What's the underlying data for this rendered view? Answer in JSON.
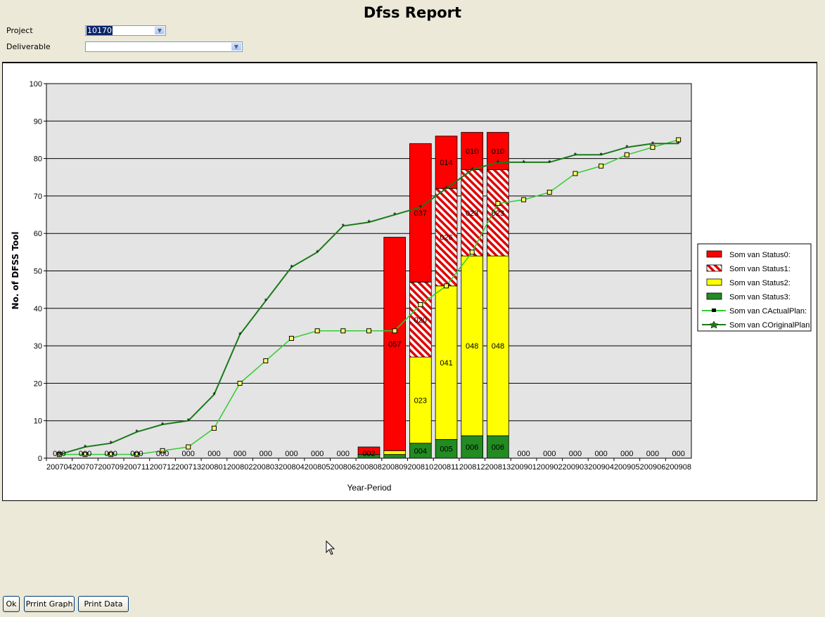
{
  "window": {
    "title": "Dfss Report"
  },
  "filters": {
    "project_label": "Project",
    "project_value": "10170",
    "deliverable_label": "Deliverable",
    "deliverable_value": ""
  },
  "buttons": {
    "ok": "Ok",
    "print_graph": "Prrint Graph",
    "print_data": "Print Data"
  },
  "chart_data": {
    "type": "bar",
    "stacked": true,
    "categories": [
      "200704",
      "200707",
      "200709",
      "200711",
      "200712",
      "200713",
      "200801",
      "200802",
      "200803",
      "200804",
      "200805",
      "200806",
      "200808",
      "200809",
      "200810",
      "200811",
      "200812",
      "200813",
      "200901",
      "200902",
      "200903",
      "200904",
      "200905",
      "200906",
      "200908"
    ],
    "ylabel": "No. of DFSS Tool",
    "xlabel": "Year-Period",
    "ylim": [
      0,
      100
    ],
    "yticks": [
      0,
      10,
      20,
      30,
      40,
      50,
      60,
      70,
      80,
      90,
      100
    ],
    "grid": true,
    "legend_position": "right",
    "series": [
      {
        "name": "Som van Status0:",
        "kind": "bar",
        "color": "#ff0000",
        "pattern": "solid",
        "values": [
          0,
          0,
          0,
          0,
          0,
          0,
          0,
          0,
          0,
          0,
          0,
          0,
          2,
          57,
          37,
          14,
          10,
          10,
          0,
          0,
          0,
          0,
          0,
          0,
          0
        ],
        "labels": [
          "000",
          "000",
          "000",
          "000",
          "000",
          "000",
          "000",
          "000",
          "000",
          "000",
          "000",
          "000",
          "002",
          "057",
          "037",
          "014",
          "010",
          "010",
          "000",
          "000",
          "000",
          "000",
          "000",
          "000",
          "000"
        ]
      },
      {
        "name": "Som van Status1:",
        "kind": "bar",
        "color": "#e00000",
        "pattern": "hatch",
        "values": [
          0,
          0,
          0,
          0,
          0,
          0,
          0,
          0,
          0,
          0,
          0,
          0,
          0,
          0,
          20,
          26,
          23,
          23,
          0,
          0,
          0,
          0,
          0,
          0,
          0
        ],
        "labels": [
          "",
          "",
          "",
          "",
          "",
          "",
          "",
          "",
          "",
          "",
          "",
          "",
          "",
          "",
          "020",
          "026",
          "023",
          "023",
          "",
          "",
          "",
          "",
          "",
          "",
          ""
        ]
      },
      {
        "name": "Som van Status2:",
        "kind": "bar",
        "color": "#ffff00",
        "pattern": "solid",
        "values": [
          0,
          0,
          0,
          0,
          0,
          0,
          0,
          0,
          0,
          0,
          0,
          0,
          0,
          1,
          23,
          41,
          48,
          48,
          0,
          0,
          0,
          0,
          0,
          0,
          0
        ],
        "labels": [
          "",
          "",
          "",
          "",
          "",
          "",
          "",
          "",
          "",
          "",
          "",
          "",
          "",
          "",
          "023",
          "041",
          "048",
          "048",
          "",
          "",
          "",
          "",
          "",
          "",
          ""
        ]
      },
      {
        "name": "Som van Status3:",
        "kind": "bar",
        "color": "#228b22",
        "pattern": "solid",
        "values": [
          0,
          0,
          0,
          0,
          0,
          0,
          0,
          0,
          0,
          0,
          0,
          0,
          1,
          1,
          4,
          5,
          6,
          6,
          0,
          0,
          0,
          0,
          0,
          0,
          0
        ],
        "labels": [
          "",
          "",
          "",
          "",
          "",
          "",
          "",
          "",
          "",
          "",
          "",
          "",
          "",
          "",
          "004",
          "005",
          "006",
          "006",
          "",
          "",
          "",
          "",
          "",
          "",
          ""
        ]
      },
      {
        "name": "Som van CActualPlan:",
        "kind": "line",
        "color": "#33cc33",
        "marker": "square",
        "values": [
          1,
          1,
          1,
          1,
          2,
          3,
          8,
          20,
          26,
          32,
          34,
          34,
          34,
          34,
          41,
          46,
          55,
          68,
          69,
          71,
          76,
          78,
          81,
          83,
          85
        ]
      },
      {
        "name": "Som van COriginalPlan:",
        "kind": "line",
        "color": "#1a7a1a",
        "marker": "star",
        "values": [
          1,
          3,
          4,
          7,
          9,
          10,
          17,
          33,
          42,
          51,
          55,
          62,
          63,
          65,
          67,
          72,
          77,
          79,
          79,
          79,
          81,
          81,
          83,
          84,
          84
        ]
      }
    ]
  }
}
